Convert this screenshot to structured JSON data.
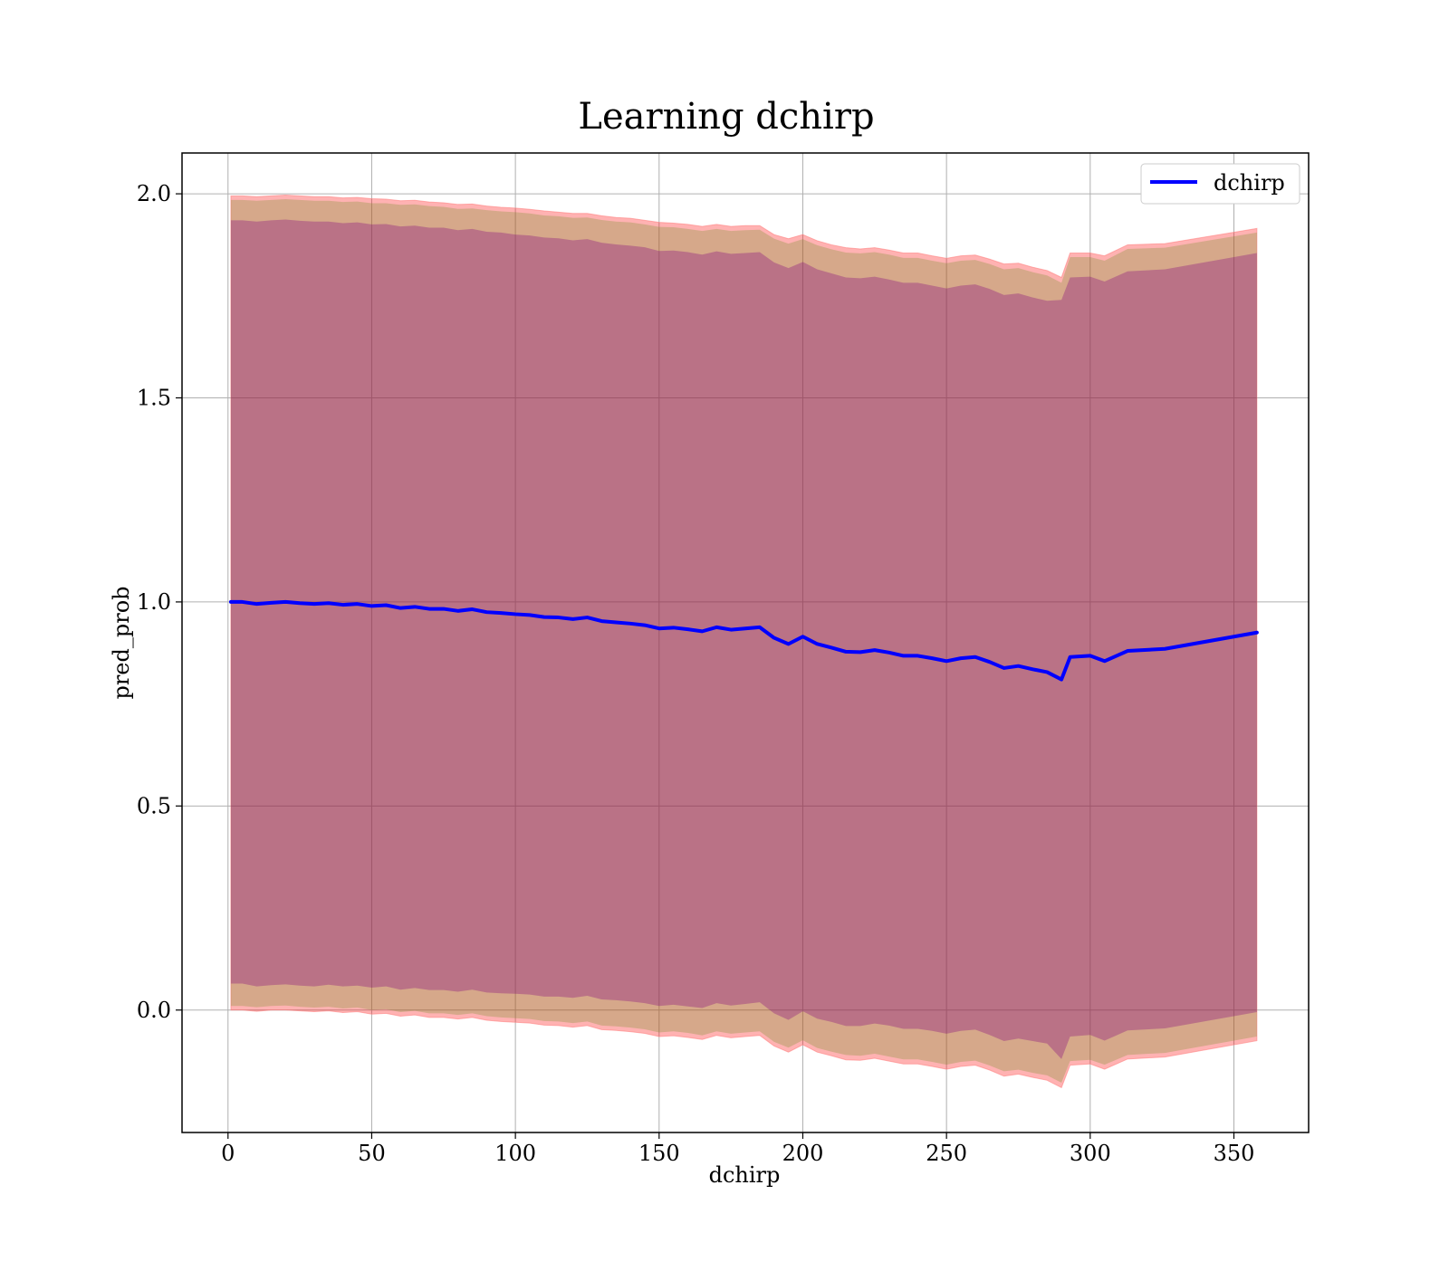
{
  "chart_data": {
    "type": "line",
    "title": "Learning dchirp",
    "xlabel": "dchirp",
    "ylabel": "pred_prob",
    "xlim": [
      -16,
      376
    ],
    "ylim": [
      -0.3,
      2.1
    ],
    "xticks": [
      0,
      50,
      100,
      150,
      200,
      250,
      300,
      350
    ],
    "xtick_labels": [
      "0",
      "50",
      "100",
      "150",
      "200",
      "250",
      "300",
      "350"
    ],
    "yticks": [
      0.0,
      0.5,
      1.0,
      1.5,
      2.0
    ],
    "ytick_labels": [
      "0.0",
      "0.5",
      "1.0",
      "1.5",
      "2.0"
    ],
    "grid": true,
    "legend": {
      "placement": "top-right",
      "entries": [
        "dchirp"
      ]
    },
    "colors": {
      "line": "#0000ff",
      "outer_band": "#ff0000",
      "middle_band": "#6b8e23",
      "inner_band": "#800080"
    },
    "series": [
      {
        "name": "dchirp",
        "x": [
          1,
          5,
          10,
          15,
          20,
          25,
          30,
          35,
          40,
          45,
          50,
          55,
          60,
          65,
          70,
          75,
          80,
          85,
          90,
          95,
          100,
          105,
          110,
          115,
          120,
          125,
          130,
          135,
          140,
          145,
          150,
          155,
          160,
          165,
          170,
          175,
          180,
          185,
          190,
          195,
          200,
          205,
          210,
          215,
          220,
          225,
          230,
          235,
          240,
          245,
          250,
          255,
          260,
          265,
          270,
          275,
          280,
          285,
          290,
          293,
          300,
          305,
          313,
          326,
          358
        ],
        "y": [
          1.0,
          1.0,
          0.995,
          0.998,
          1.0,
          0.997,
          0.995,
          0.997,
          0.993,
          0.995,
          0.99,
          0.992,
          0.985,
          0.988,
          0.983,
          0.983,
          0.978,
          0.982,
          0.975,
          0.973,
          0.97,
          0.968,
          0.963,
          0.962,
          0.958,
          0.962,
          0.953,
          0.95,
          0.947,
          0.943,
          0.935,
          0.937,
          0.933,
          0.928,
          0.938,
          0.932,
          0.935,
          0.938,
          0.912,
          0.897,
          0.915,
          0.897,
          0.888,
          0.878,
          0.877,
          0.882,
          0.876,
          0.868,
          0.868,
          0.862,
          0.855,
          0.862,
          0.865,
          0.853,
          0.838,
          0.843,
          0.835,
          0.828,
          0.81,
          0.865,
          0.868,
          0.855,
          0.88,
          0.885,
          0.925
        ]
      }
    ],
    "bands": [
      {
        "color": "red",
        "x": [
          1,
          5,
          10,
          15,
          20,
          25,
          30,
          35,
          40,
          45,
          50,
          55,
          60,
          65,
          70,
          75,
          80,
          85,
          90,
          95,
          100,
          105,
          110,
          115,
          120,
          125,
          130,
          135,
          140,
          145,
          150,
          155,
          160,
          165,
          170,
          175,
          180,
          185,
          190,
          195,
          200,
          205,
          210,
          215,
          220,
          225,
          230,
          235,
          240,
          245,
          250,
          255,
          260,
          265,
          270,
          275,
          280,
          285,
          290,
          293,
          300,
          305,
          313,
          326,
          358
        ],
        "upper": [
          1.995,
          1.995,
          1.993,
          1.995,
          1.997,
          1.995,
          1.993,
          1.993,
          1.99,
          1.991,
          1.988,
          1.987,
          1.983,
          1.984,
          1.98,
          1.978,
          1.974,
          1.975,
          1.97,
          1.967,
          1.965,
          1.962,
          1.958,
          1.955,
          1.952,
          1.952,
          1.946,
          1.942,
          1.94,
          1.935,
          1.93,
          1.928,
          1.925,
          1.92,
          1.925,
          1.92,
          1.922,
          1.922,
          1.9,
          1.89,
          1.9,
          1.885,
          1.875,
          1.868,
          1.865,
          1.868,
          1.862,
          1.855,
          1.855,
          1.848,
          1.842,
          1.848,
          1.85,
          1.84,
          1.828,
          1.83,
          1.82,
          1.812,
          1.795,
          1.855,
          1.855,
          1.848,
          1.875,
          1.878,
          1.915
        ],
        "lower": [
          0.0,
          0.0,
          -0.003,
          0.0,
          0.0,
          -0.002,
          -0.004,
          -0.002,
          -0.006,
          -0.004,
          -0.01,
          -0.008,
          -0.015,
          -0.012,
          -0.018,
          -0.018,
          -0.022,
          -0.018,
          -0.025,
          -0.028,
          -0.03,
          -0.032,
          -0.037,
          -0.038,
          -0.042,
          -0.038,
          -0.048,
          -0.05,
          -0.053,
          -0.057,
          -0.065,
          -0.063,
          -0.067,
          -0.072,
          -0.062,
          -0.068,
          -0.065,
          -0.062,
          -0.088,
          -0.103,
          -0.085,
          -0.103,
          -0.112,
          -0.122,
          -0.123,
          -0.118,
          -0.125,
          -0.132,
          -0.132,
          -0.138,
          -0.145,
          -0.138,
          -0.135,
          -0.147,
          -0.162,
          -0.157,
          -0.165,
          -0.172,
          -0.19,
          -0.135,
          -0.132,
          -0.145,
          -0.12,
          -0.115,
          -0.075
        ]
      },
      {
        "color": "olive",
        "x": [
          1,
          5,
          10,
          15,
          20,
          25,
          30,
          35,
          40,
          45,
          50,
          55,
          60,
          65,
          70,
          75,
          80,
          85,
          90,
          95,
          100,
          105,
          110,
          115,
          120,
          125,
          130,
          135,
          140,
          145,
          150,
          155,
          160,
          165,
          170,
          175,
          180,
          185,
          190,
          195,
          200,
          205,
          210,
          215,
          220,
          225,
          230,
          235,
          240,
          245,
          250,
          255,
          260,
          265,
          270,
          275,
          280,
          285,
          290,
          293,
          300,
          305,
          313,
          326,
          358
        ],
        "upper": [
          1.985,
          1.985,
          1.983,
          1.985,
          1.987,
          1.985,
          1.983,
          1.983,
          1.98,
          1.981,
          1.977,
          1.977,
          1.973,
          1.974,
          1.97,
          1.968,
          1.963,
          1.964,
          1.96,
          1.957,
          1.955,
          1.952,
          1.947,
          1.945,
          1.941,
          1.942,
          1.936,
          1.932,
          1.93,
          1.925,
          1.919,
          1.918,
          1.914,
          1.909,
          1.914,
          1.909,
          1.911,
          1.912,
          1.89,
          1.878,
          1.889,
          1.874,
          1.864,
          1.856,
          1.854,
          1.857,
          1.851,
          1.843,
          1.843,
          1.836,
          1.83,
          1.836,
          1.838,
          1.828,
          1.815,
          1.818,
          1.808,
          1.8,
          1.782,
          1.845,
          1.845,
          1.836,
          1.865,
          1.868,
          1.905
        ],
        "lower": [
          0.01,
          0.01,
          0.007,
          0.01,
          0.011,
          0.008,
          0.006,
          0.008,
          0.004,
          0.006,
          0.0,
          0.002,
          -0.005,
          -0.002,
          -0.008,
          -0.008,
          -0.012,
          -0.008,
          -0.015,
          -0.018,
          -0.02,
          -0.022,
          -0.027,
          -0.028,
          -0.032,
          -0.028,
          -0.038,
          -0.04,
          -0.043,
          -0.047,
          -0.055,
          -0.052,
          -0.056,
          -0.062,
          -0.052,
          -0.058,
          -0.055,
          -0.052,
          -0.078,
          -0.092,
          -0.074,
          -0.093,
          -0.102,
          -0.11,
          -0.112,
          -0.107,
          -0.114,
          -0.121,
          -0.121,
          -0.127,
          -0.134,
          -0.127,
          -0.124,
          -0.136,
          -0.15,
          -0.146,
          -0.154,
          -0.16,
          -0.178,
          -0.125,
          -0.122,
          -0.134,
          -0.11,
          -0.105,
          -0.065
        ]
      },
      {
        "color": "purple",
        "x": [
          1,
          5,
          10,
          15,
          20,
          25,
          30,
          35,
          40,
          45,
          50,
          55,
          60,
          65,
          70,
          75,
          80,
          85,
          90,
          95,
          100,
          105,
          110,
          115,
          120,
          125,
          130,
          135,
          140,
          145,
          150,
          155,
          160,
          165,
          170,
          175,
          180,
          185,
          190,
          195,
          200,
          205,
          210,
          215,
          220,
          225,
          230,
          235,
          240,
          245,
          250,
          255,
          260,
          265,
          270,
          275,
          280,
          285,
          290,
          293,
          300,
          305,
          313,
          326,
          358
        ],
        "upper": [
          1.935,
          1.935,
          1.932,
          1.935,
          1.937,
          1.934,
          1.932,
          1.932,
          1.928,
          1.93,
          1.925,
          1.926,
          1.92,
          1.922,
          1.917,
          1.917,
          1.911,
          1.914,
          1.907,
          1.905,
          1.9,
          1.898,
          1.893,
          1.891,
          1.886,
          1.889,
          1.88,
          1.876,
          1.873,
          1.869,
          1.86,
          1.861,
          1.857,
          1.851,
          1.859,
          1.853,
          1.855,
          1.857,
          1.832,
          1.818,
          1.833,
          1.815,
          1.805,
          1.795,
          1.793,
          1.797,
          1.79,
          1.782,
          1.782,
          1.775,
          1.768,
          1.775,
          1.778,
          1.767,
          1.752,
          1.756,
          1.746,
          1.738,
          1.74,
          1.795,
          1.797,
          1.785,
          1.81,
          1.815,
          1.855
        ],
        "lower": [
          0.065,
          0.065,
          0.058,
          0.061,
          0.063,
          0.06,
          0.058,
          0.062,
          0.058,
          0.06,
          0.055,
          0.058,
          0.05,
          0.054,
          0.049,
          0.049,
          0.045,
          0.05,
          0.043,
          0.041,
          0.04,
          0.038,
          0.033,
          0.033,
          0.03,
          0.035,
          0.026,
          0.024,
          0.021,
          0.017,
          0.01,
          0.013,
          0.009,
          0.005,
          0.017,
          0.011,
          0.015,
          0.019,
          -0.008,
          -0.024,
          -0.003,
          -0.021,
          -0.029,
          -0.039,
          -0.039,
          -0.033,
          -0.038,
          -0.046,
          -0.046,
          -0.051,
          -0.058,
          -0.051,
          -0.048,
          -0.061,
          -0.076,
          -0.07,
          -0.076,
          -0.082,
          -0.12,
          -0.065,
          -0.061,
          -0.075,
          -0.05,
          -0.045,
          -0.005
        ]
      }
    ]
  }
}
